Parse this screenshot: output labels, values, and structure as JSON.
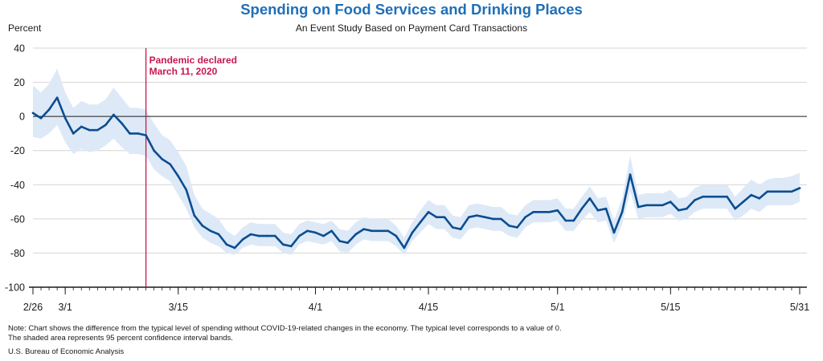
{
  "chart_data": {
    "type": "line",
    "title": "Spending on Food Services and Drinking Places",
    "subtitle": "An Event Study Based on Payment Card Transactions",
    "ylabel": "Percent",
    "xlabel": "",
    "ylim": [
      -100,
      40
    ],
    "yticks": [
      -100,
      -80,
      -60,
      -40,
      -20,
      0,
      20,
      40
    ],
    "x_start": "2/26",
    "x_end": "5/31",
    "xticks": [
      {
        "day": 0,
        "label": "2/26"
      },
      {
        "day": 4,
        "label": "3/1"
      },
      {
        "day": 18,
        "label": "3/15"
      },
      {
        "day": 35,
        "label": "4/1"
      },
      {
        "day": 49,
        "label": "4/15"
      },
      {
        "day": 65,
        "label": "5/1"
      },
      {
        "day": 79,
        "label": "5/15"
      },
      {
        "day": 95,
        "label": "5/31"
      }
    ],
    "grid": true,
    "series": [
      {
        "values": [
          2,
          -1,
          4,
          11,
          -1,
          -10,
          -6,
          -8,
          -8,
          -5,
          1,
          -4,
          -10,
          -10,
          -11,
          -20,
          -25,
          -28,
          -35,
          -43,
          -58,
          -64,
          -67,
          -69,
          -75,
          -77,
          -72,
          -69,
          -70,
          -70,
          -70,
          -75,
          -76,
          -70,
          -67,
          -68,
          -70,
          -67,
          -73,
          -74,
          -69,
          -66,
          -67,
          -67,
          -67,
          -70,
          -77,
          -68,
          -62,
          -56,
          -59,
          -59,
          -65,
          -66,
          -59,
          -58,
          -59,
          -60,
          -60,
          -64,
          -65,
          -59,
          -56,
          -56,
          -56,
          -55,
          -61,
          -61,
          -54,
          -48,
          -55,
          -54,
          -68,
          -56,
          -34,
          -53,
          -52,
          -52,
          -52,
          -50,
          -55,
          -54,
          -49,
          -47,
          -47,
          -47,
          -47,
          -54,
          -50,
          -46,
          -48,
          -44,
          -44,
          -44,
          -44,
          -42
        ],
        "upper": [
          18,
          14,
          19,
          28,
          14,
          5,
          9,
          7,
          7,
          10,
          17,
          11,
          5,
          5,
          4,
          -4,
          -11,
          -14,
          -21,
          -29,
          -46,
          -54,
          -57,
          -60,
          -67,
          -70,
          -65,
          -62,
          -63,
          -63,
          -63,
          -68,
          -69,
          -63,
          -61,
          -62,
          -63,
          -61,
          -66,
          -67,
          -62,
          -59,
          -60,
          -60,
          -60,
          -64,
          -71,
          -62,
          -55,
          -49,
          -52,
          -52,
          -58,
          -59,
          -52,
          -51,
          -52,
          -53,
          -53,
          -57,
          -58,
          -52,
          -49,
          -49,
          -49,
          -48,
          -54,
          -54,
          -47,
          -41,
          -48,
          -47,
          -61,
          -48,
          -23,
          -46,
          -45,
          -45,
          -45,
          -43,
          -48,
          -47,
          -42,
          -40,
          -40,
          -40,
          -40,
          -47,
          -42,
          -37,
          -40,
          -37,
          -36,
          -36,
          -35,
          -33
        ],
        "lower": [
          -12,
          -13,
          -10,
          -5,
          -15,
          -22,
          -19,
          -21,
          -20,
          -17,
          -13,
          -18,
          -22,
          -22,
          -23,
          -31,
          -35,
          -38,
          -46,
          -54,
          -65,
          -71,
          -74,
          -76,
          -80,
          -81,
          -77,
          -75,
          -76,
          -76,
          -76,
          -80,
          -81,
          -75,
          -73,
          -74,
          -75,
          -73,
          -79,
          -80,
          -75,
          -72,
          -73,
          -73,
          -73,
          -76,
          -81,
          -73,
          -68,
          -63,
          -66,
          -66,
          -71,
          -72,
          -66,
          -65,
          -66,
          -67,
          -67,
          -70,
          -71,
          -65,
          -62,
          -62,
          -62,
          -61,
          -67,
          -67,
          -61,
          -56,
          -62,
          -61,
          -74,
          -63,
          -44,
          -60,
          -59,
          -59,
          -59,
          -57,
          -61,
          -60,
          -56,
          -54,
          -54,
          -54,
          -54,
          -61,
          -58,
          -54,
          -56,
          -52,
          -52,
          -52,
          -52,
          -50
        ]
      }
    ],
    "event_day": 14,
    "annotation": [
      "Pandemic declared",
      "March 11, 2020"
    ],
    "colors": {
      "line": "#0b4d91",
      "band": "#dde9f7",
      "event": "#c8174f",
      "title": "#1f6fb8",
      "grid": "#d4d4d4",
      "zero": "#1a1a1a"
    }
  },
  "notes": {
    "line1": "Note: Chart shows the difference from the typical level of spending without COVID-19-related changes in the economy. The typical level corresponds to a value of 0.",
    "line2": "The shaded area represents 95 percent confidence interval bands.",
    "source": "U.S. Bureau of Economic Analysis"
  }
}
